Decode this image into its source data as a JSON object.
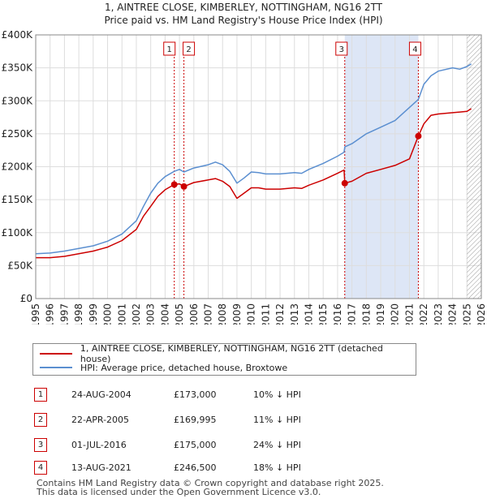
{
  "title_line1": "1, AINTREE CLOSE, KIMBERLEY, NOTTINGHAM, NG16 2TT",
  "title_line2": "Price paid vs. HM Land Registry's House Price Index (HPI)",
  "colors": {
    "property": "#cc0000",
    "hpi": "#5b8fd0",
    "shade": "#dde6f6",
    "marker": "#cc0000"
  },
  "chart_data": {
    "type": "line",
    "xlim": [
      1995.0,
      2026.0
    ],
    "ylim": [
      0,
      400000
    ],
    "x_ticks": [
      "1995",
      "1996",
      "1997",
      "1998",
      "1999",
      "2000",
      "2001",
      "2002",
      "2003",
      "2004",
      "2005",
      "2006",
      "2007",
      "2008",
      "2009",
      "2010",
      "2011",
      "2012",
      "2013",
      "2014",
      "2015",
      "2016",
      "2017",
      "2018",
      "2019",
      "2020",
      "2021",
      "2022",
      "2023",
      "2024",
      "2025",
      "2026"
    ],
    "y_ticks": [
      {
        "value": 0,
        "label": "£0"
      },
      {
        "value": 50000,
        "label": "£50K"
      },
      {
        "value": 100000,
        "label": "£100K"
      },
      {
        "value": 150000,
        "label": "£150K"
      },
      {
        "value": 200000,
        "label": "£200K"
      },
      {
        "value": 250000,
        "label": "£250K"
      },
      {
        "value": 300000,
        "label": "£300K"
      },
      {
        "value": 350000,
        "label": "£350K"
      },
      {
        "value": 400000,
        "label": "£400K"
      }
    ],
    "grid": true,
    "series": [
      {
        "name": "1, AINTREE CLOSE, KIMBERLEY, NOTTINGHAM, NG16 2TT (detached house)",
        "x": [
          1995.0,
          1996.0,
          1997.0,
          1998.0,
          1999.0,
          2000.0,
          2001.0,
          2002.0,
          2002.5,
          2003.0,
          2003.5,
          2004.0,
          2004.64,
          2005.0,
          2005.31,
          2006.0,
          2007.0,
          2007.5,
          2008.0,
          2008.5,
          2009.0,
          2009.5,
          2010.0,
          2010.5,
          2011.0,
          2012.0,
          2013.0,
          2013.5,
          2014.0,
          2015.0,
          2016.0,
          2016.45,
          2016.5,
          2017.0,
          2018.0,
          2019.0,
          2020.0,
          2021.0,
          2021.62,
          2022.0,
          2022.5,
          2023.0,
          2024.0,
          2024.5,
          2025.0,
          2025.3
        ],
        "values": [
          62000,
          62000,
          64000,
          68000,
          72000,
          78000,
          88000,
          105000,
          125000,
          140000,
          155000,
          165000,
          173000,
          174000,
          169995,
          176000,
          180000,
          182000,
          178000,
          170000,
          152000,
          160000,
          168000,
          168000,
          166000,
          166000,
          168000,
          167000,
          172000,
          180000,
          190000,
          195000,
          175000,
          178000,
          190000,
          196000,
          202000,
          212000,
          246500,
          265000,
          278000,
          280000,
          282000,
          283000,
          284000,
          288000
        ]
      },
      {
        "name": "HPI: Average price, detached house, Broxtowe",
        "x": [
          1995.0,
          1996.0,
          1997.0,
          1998.0,
          1999.0,
          2000.0,
          2001.0,
          2002.0,
          2002.5,
          2003.0,
          2003.5,
          2004.0,
          2004.64,
          2005.0,
          2005.31,
          2006.0,
          2007.0,
          2007.5,
          2008.0,
          2008.5,
          2009.0,
          2009.5,
          2010.0,
          2010.5,
          2011.0,
          2012.0,
          2013.0,
          2013.5,
          2014.0,
          2015.0,
          2016.0,
          2016.45,
          2016.5,
          2017.0,
          2018.0,
          2019.0,
          2020.0,
          2021.0,
          2021.62,
          2022.0,
          2022.5,
          2023.0,
          2024.0,
          2024.5,
          2025.0,
          2025.3
        ],
        "values": [
          68000,
          69000,
          72000,
          76000,
          80000,
          87000,
          98000,
          118000,
          140000,
          160000,
          175000,
          185000,
          193000,
          196000,
          192000,
          198000,
          203000,
          207000,
          203000,
          193000,
          175000,
          183000,
          192000,
          191000,
          189000,
          189000,
          191000,
          190000,
          196000,
          205000,
          216000,
          222000,
          230000,
          235000,
          250000,
          260000,
          270000,
          290000,
          302000,
          325000,
          338000,
          345000,
          350000,
          348000,
          352000,
          356000
        ]
      }
    ],
    "sales": [
      {
        "label": "1",
        "date": "24-AUG-2004",
        "x": 2004.64,
        "value": 173000,
        "price": "£173,000",
        "hpi": "10% ↓ HPI"
      },
      {
        "label": "2",
        "date": "22-APR-2005",
        "x": 2005.31,
        "value": 169995,
        "price": "£169,995",
        "hpi": "11% ↓ HPI"
      },
      {
        "label": "3",
        "date": "01-JUL-2016",
        "x": 2016.5,
        "value": 175000,
        "price": "£175,000",
        "hpi": "24% ↓ HPI"
      },
      {
        "label": "4",
        "date": "13-AUG-2021",
        "x": 2021.62,
        "value": 246500,
        "price": "£246,500",
        "hpi": "18% ↓ HPI"
      }
    ],
    "shaded_ranges": [
      [
        2016.5,
        2021.62
      ]
    ],
    "hatched_from": 2025.0
  },
  "legend": {
    "property_label": "1, AINTREE CLOSE, KIMBERLEY, NOTTINGHAM, NG16 2TT (detached house)",
    "hpi_label": "HPI: Average price, detached house, Broxtowe"
  },
  "footer": {
    "line1": "Contains HM Land Registry data © Crown copyright and database right 2025.",
    "line2": "This data is licensed under the Open Government Licence v3.0."
  }
}
